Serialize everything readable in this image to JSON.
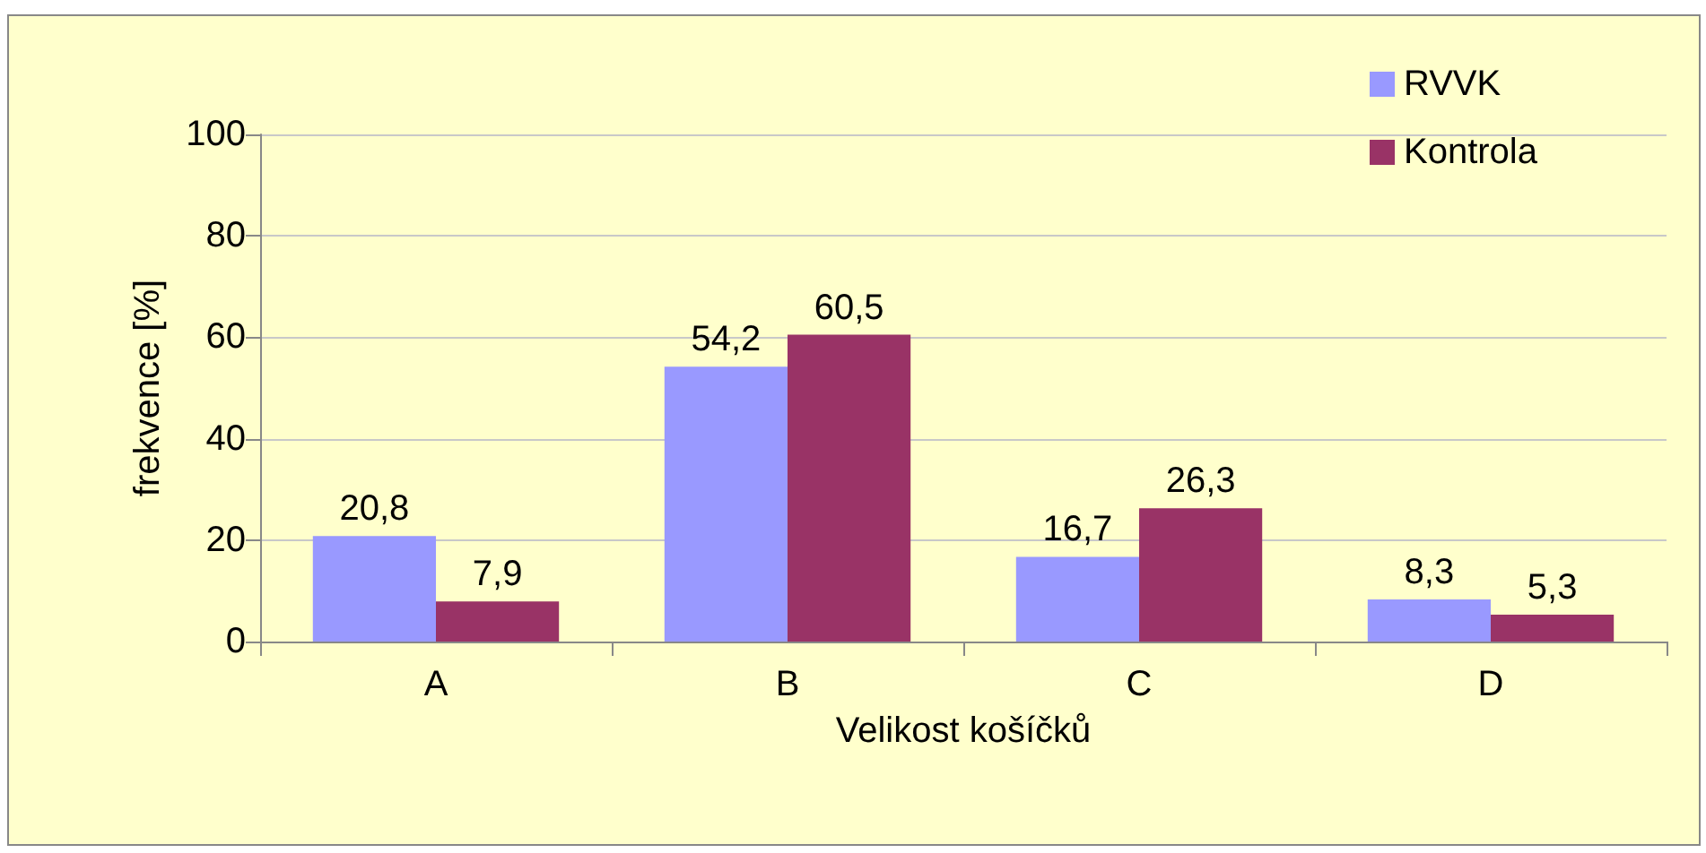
{
  "chart_data": {
    "type": "bar",
    "xlabel": "Velikost košíčků",
    "ylabel": "frekvence [%]",
    "categories": [
      "A",
      "B",
      "C",
      "D"
    ],
    "series": [
      {
        "name": "RVVK",
        "color": "#9999ff",
        "values": [
          20.8,
          54.2,
          16.7,
          8.3
        ],
        "value_labels": [
          "20,8",
          "54,2",
          "16,7",
          "8,3"
        ]
      },
      {
        "name": "Kontrola",
        "color": "#993366",
        "values": [
          7.9,
          60.5,
          26.3,
          5.3
        ],
        "value_labels": [
          "7,9",
          "60,5",
          "26,3",
          "5,3"
        ]
      }
    ],
    "ylim": [
      0,
      100
    ],
    "yticks": [
      0,
      20,
      40,
      60,
      80,
      100
    ],
    "grid": "y",
    "legend": "top right"
  }
}
